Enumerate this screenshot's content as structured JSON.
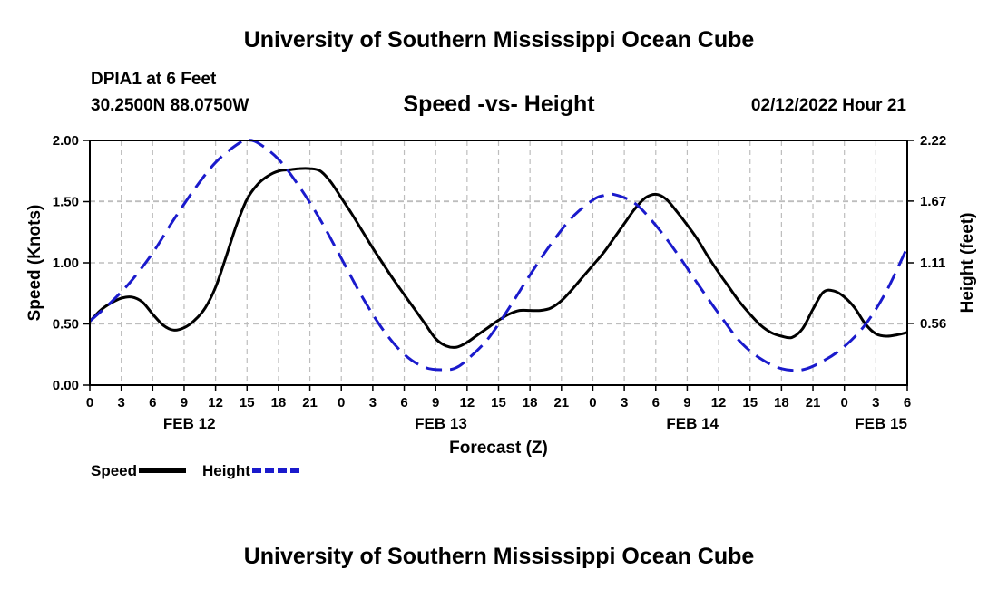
{
  "header": {
    "title": "University of Southern Mississippi Ocean Cube",
    "station": "DPIA1 at 6 Feet",
    "coordinates": "30.2500N  88.0750W",
    "chart_title": "Speed -vs- Height",
    "datetime": "02/12/2022 Hour 21"
  },
  "footer": {
    "title": "University of Southern Mississippi Ocean Cube"
  },
  "legend": {
    "speed_label": "Speed",
    "height_label": "Height"
  },
  "colors": {
    "speed": "#000000",
    "height": "#1a1acc",
    "grid": "#bdbdbd"
  },
  "chart_data": {
    "type": "line",
    "title": "Speed -vs- Height",
    "xlabel": "Forecast (Z)",
    "ylabel": "Speed (Knots)",
    "y2label": "Height (feet)",
    "x_unit": "hours from FEB 12 00Z",
    "xlim": [
      0,
      78
    ],
    "ylim": [
      0,
      2
    ],
    "y2lim": [
      0,
      2.22
    ],
    "x_ticks": [
      0,
      3,
      6,
      9,
      12,
      15,
      18,
      21,
      24,
      27,
      30,
      33,
      36,
      39,
      42,
      45,
      48,
      51,
      54,
      57,
      60,
      63,
      66,
      69,
      72,
      75,
      78
    ],
    "x_tick_labels": [
      "0",
      "3",
      "6",
      "9",
      "12",
      "15",
      "18",
      "21",
      "0",
      "3",
      "6",
      "9",
      "12",
      "15",
      "18",
      "21",
      "0",
      "3",
      "6",
      "9",
      "12",
      "15",
      "18",
      "21",
      "0",
      "3",
      "6"
    ],
    "date_labels": [
      {
        "x": 9.5,
        "label": "FEB 12"
      },
      {
        "x": 33.5,
        "label": "FEB 13"
      },
      {
        "x": 57.5,
        "label": "FEB 14"
      },
      {
        "x": 75.5,
        "label": "FEB 15"
      }
    ],
    "y_ticks": [
      0,
      0.5,
      1,
      1.5,
      2
    ],
    "y_tick_labels": [
      "0.00",
      "0.50",
      "1.00",
      "1.50",
      "2.00"
    ],
    "y2_ticks": [
      0.56,
      1.11,
      1.67,
      2.22
    ],
    "y2_tick_labels": [
      "0.56",
      "1.11",
      "1.67",
      "2.22"
    ],
    "grid": true,
    "legend_position": "bottom-left",
    "series": [
      {
        "name": "Speed",
        "axis": "left",
        "style": "solid",
        "x": [
          0,
          1,
          2,
          3,
          4,
          5,
          6,
          7,
          8,
          9,
          10,
          11,
          12,
          13,
          14,
          15,
          16,
          17,
          18,
          19,
          20,
          21,
          22,
          23,
          24,
          25,
          26,
          27,
          28,
          29,
          30,
          31,
          32,
          33,
          34,
          35,
          36,
          37,
          38,
          39,
          40,
          41,
          42,
          43,
          44,
          45,
          46,
          47,
          48,
          49,
          50,
          51,
          52,
          53,
          54,
          55,
          56,
          57,
          58,
          59,
          60,
          61,
          62,
          63,
          64,
          65,
          66,
          67,
          68,
          69,
          70,
          71,
          72,
          73,
          74,
          75,
          76,
          77,
          78
        ],
        "values": [
          0.52,
          0.61,
          0.67,
          0.71,
          0.72,
          0.68,
          0.58,
          0.49,
          0.45,
          0.47,
          0.53,
          0.63,
          0.8,
          1.05,
          1.31,
          1.52,
          1.64,
          1.71,
          1.75,
          1.76,
          1.77,
          1.77,
          1.75,
          1.66,
          1.53,
          1.4,
          1.26,
          1.12,
          0.99,
          0.86,
          0.74,
          0.62,
          0.5,
          0.38,
          0.32,
          0.31,
          0.35,
          0.41,
          0.47,
          0.53,
          0.58,
          0.61,
          0.61,
          0.61,
          0.63,
          0.69,
          0.78,
          0.88,
          0.98,
          1.08,
          1.2,
          1.32,
          1.44,
          1.53,
          1.56,
          1.52,
          1.42,
          1.31,
          1.19,
          1.05,
          0.92,
          0.8,
          0.68,
          0.58,
          0.49,
          0.43,
          0.4,
          0.39,
          0.46,
          0.62,
          0.76,
          0.77,
          0.72,
          0.63,
          0.5,
          0.42,
          0.4,
          0.41,
          0.43
        ]
      },
      {
        "name": "Height",
        "axis": "right",
        "style": "dashed",
        "x": [
          0,
          2,
          4,
          6,
          8,
          10,
          12,
          14,
          15,
          16,
          18,
          20,
          22,
          24,
          26,
          28,
          30,
          32,
          34,
          35,
          36,
          38,
          40,
          42,
          44,
          46,
          48,
          49,
          50,
          52,
          54,
          56,
          58,
          60,
          62,
          64,
          66,
          68,
          70,
          72,
          74,
          76,
          78
        ],
        "values": [
          0.58,
          0.75,
          0.95,
          1.2,
          1.5,
          1.78,
          2.02,
          2.18,
          2.22,
          2.2,
          2.05,
          1.8,
          1.5,
          1.15,
          0.8,
          0.5,
          0.28,
          0.16,
          0.14,
          0.16,
          0.23,
          0.42,
          0.7,
          1.0,
          1.28,
          1.52,
          1.68,
          1.72,
          1.73,
          1.65,
          1.45,
          1.2,
          0.92,
          0.65,
          0.4,
          0.24,
          0.15,
          0.14,
          0.22,
          0.35,
          0.55,
          0.85,
          1.25
        ]
      }
    ]
  }
}
